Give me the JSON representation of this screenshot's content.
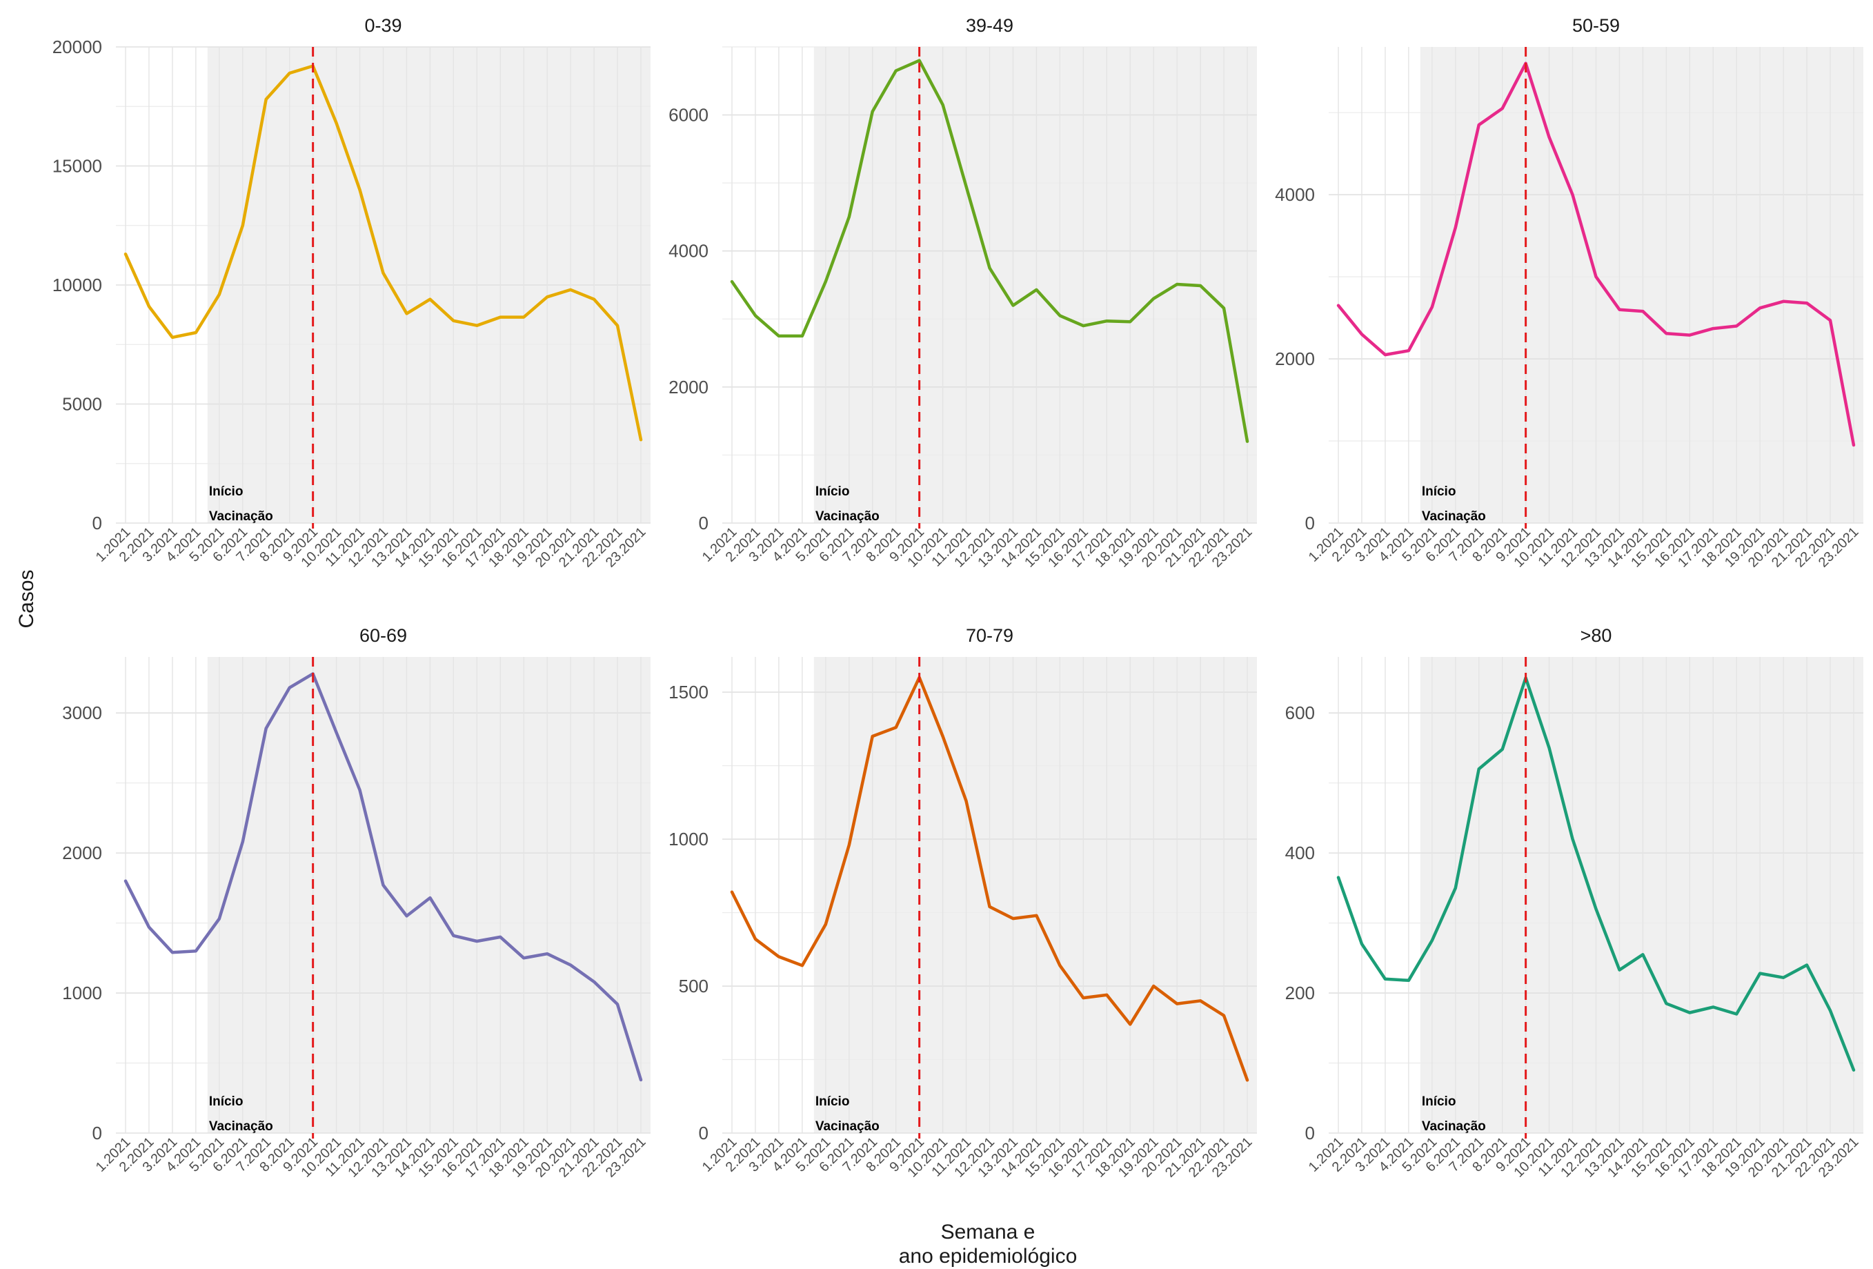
{
  "chart_data": {
    "type": "line",
    "layout": "facet-grid-2x3",
    "xlabel_lines": [
      "Semana e",
      "ano epidemiológico"
    ],
    "ylabel": "Casos",
    "x": [
      "1.2021",
      "2.2021",
      "3.2021",
      "4.2021",
      "5.2021",
      "6.2021",
      "7.2021",
      "8.2021",
      "9.2021",
      "10.2021",
      "11.2021",
      "12.2021",
      "13.2021",
      "14.2021",
      "15.2021",
      "16.2021",
      "17.2021",
      "18.2021",
      "19.2021",
      "20.2021",
      "21.2021",
      "22.2021",
      "23.2021"
    ],
    "shaded_from": "5.2021",
    "vline_at": "9.2021",
    "vline_color": "#e41a1c",
    "annotation_lines": [
      "Início",
      "Vacinação"
    ],
    "grid": true,
    "facets": [
      {
        "title": "0-39",
        "color": "#e6ab02",
        "ylim": [
          0,
          20000
        ],
        "yticks": [
          0,
          5000,
          10000,
          15000,
          20000
        ],
        "values": [
          11300,
          9100,
          7800,
          8000,
          9600,
          12500,
          17800,
          18900,
          19200,
          16800,
          14000,
          10500,
          8800,
          9400,
          8500,
          8300,
          8650,
          8650,
          9500,
          9800,
          9400,
          8300,
          3500
        ]
      },
      {
        "title": "39-49",
        "color": "#66a61e",
        "ylim": [
          0,
          7000
        ],
        "yticks": [
          0,
          2000,
          4000,
          6000
        ],
        "values": [
          3550,
          3050,
          2750,
          2750,
          3550,
          4500,
          6050,
          6650,
          6800,
          6150,
          4950,
          3750,
          3200,
          3430,
          3050,
          2900,
          2970,
          2960,
          3300,
          3510,
          3490,
          3160,
          1200
        ]
      },
      {
        "title": "50-59",
        "color": "#e7298a",
        "ylim": [
          0,
          5800
        ],
        "yticks": [
          0,
          2000,
          4000
        ],
        "values": [
          2650,
          2300,
          2050,
          2100,
          2630,
          3600,
          4850,
          5050,
          5600,
          4700,
          4000,
          3000,
          2600,
          2580,
          2310,
          2290,
          2370,
          2400,
          2620,
          2700,
          2680,
          2470,
          950
        ]
      },
      {
        "title": "60-69",
        "color": "#7570b3",
        "ylim": [
          0,
          3400
        ],
        "yticks": [
          0,
          1000,
          2000,
          3000
        ],
        "values": [
          1800,
          1470,
          1290,
          1300,
          1530,
          2080,
          2890,
          3180,
          3280,
          2860,
          2450,
          1770,
          1550,
          1680,
          1410,
          1370,
          1400,
          1250,
          1280,
          1200,
          1080,
          920,
          380
        ]
      },
      {
        "title": "70-79",
        "color": "#d95f02",
        "ylim": [
          0,
          1620
        ],
        "yticks": [
          0,
          500,
          1000,
          1500
        ],
        "values": [
          820,
          660,
          600,
          570,
          710,
          980,
          1350,
          1380,
          1550,
          1350,
          1130,
          770,
          730,
          740,
          570,
          460,
          470,
          370,
          500,
          440,
          450,
          400,
          180
        ]
      },
      {
        "title": ">80",
        "color": "#1b9e77",
        "ylim": [
          0,
          680
        ],
        "yticks": [
          0,
          200,
          400,
          600
        ],
        "values": [
          365,
          270,
          220,
          218,
          275,
          350,
          520,
          548,
          650,
          550,
          420,
          320,
          233,
          255,
          185,
          172,
          180,
          170,
          228,
          222,
          240,
          175,
          90
        ]
      }
    ]
  }
}
